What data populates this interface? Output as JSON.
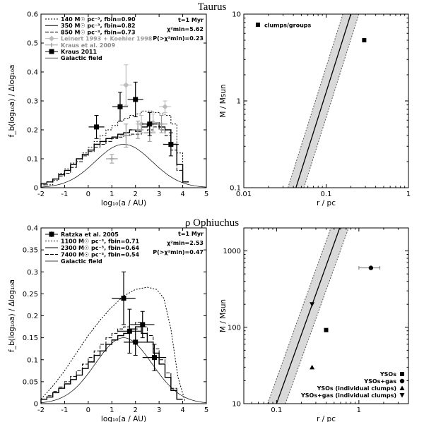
{
  "titles": {
    "top": "Taurus",
    "bottom": "ρ Ophiuchus"
  },
  "chart_data": [
    {
      "id": "taurus_sep",
      "type": "line",
      "xlabel": "log₁₀(a / AU)",
      "ylabel": "f_b(log₁₀a) / Δlog₁₀a",
      "xlim": [
        -2,
        5
      ],
      "ylim": [
        0,
        0.6
      ],
      "xticks": [
        "-2",
        "-1",
        "0",
        "1",
        "2",
        "3",
        "4",
        "5"
      ],
      "yticks": [
        "0",
        "0.1",
        "0.2",
        "0.3",
        "0.4",
        "0.5",
        "0.6"
      ],
      "annotation": [
        "t=1 Myr",
        "χ²min=5.62",
        "P(>χ²min)=0.23"
      ],
      "legend": [
        "140 M☉ pc⁻³, fbin=0.90",
        "350 M☉ pc⁻³, fbin=0.82",
        "850 M☉ pc⁻³, fbin=0.73",
        "Leinert 1993 + Koehler 1998",
        "Kraus et al. 2009",
        "Kraus 2011",
        "Galactic field"
      ],
      "series": [
        {
          "name": "140",
          "style": "dotted",
          "x": [
            -2,
            -1.5,
            -1.25,
            -1,
            -0.75,
            -0.5,
            -0.25,
            0,
            0.25,
            0.5,
            0.75,
            1,
            1.25,
            1.5,
            1.75,
            2,
            2.25,
            2.5,
            2.75,
            3,
            3.25,
            3.5,
            3.75,
            4
          ],
          "y": [
            0.01,
            0.025,
            0.05,
            0.065,
            0.085,
            0.1,
            0.12,
            0.14,
            0.16,
            0.18,
            0.2,
            0.215,
            0.23,
            0.24,
            0.25,
            0.255,
            0.265,
            0.265,
            0.26,
            0.255,
            0.25,
            0.22,
            0.12,
            0.02
          ]
        },
        {
          "name": "350",
          "style": "solid",
          "x": [
            -2,
            -1.75,
            -1.5,
            -1.25,
            -1,
            -0.75,
            -0.5,
            -0.25,
            0,
            0.25,
            0.5,
            0.75,
            1,
            1.25,
            1.5,
            1.75,
            2,
            2.25,
            2.5,
            2.75,
            3,
            3.25,
            3.5,
            3.75,
            4
          ],
          "y": [
            0.015,
            0.02,
            0.03,
            0.045,
            0.06,
            0.08,
            0.1,
            0.115,
            0.13,
            0.15,
            0.16,
            0.17,
            0.175,
            0.185,
            0.19,
            0.2,
            0.195,
            0.21,
            0.22,
            0.225,
            0.21,
            0.2,
            0.15,
            0.08,
            0.02
          ]
        },
        {
          "name": "850",
          "style": "dashed",
          "x": [
            -2,
            -1.75,
            -1.5,
            -1.25,
            -1,
            -0.75,
            -0.5,
            -0.25,
            0,
            0.25,
            0.5,
            0.75,
            1,
            1.25,
            1.5,
            1.75,
            2,
            2.25,
            2.5,
            2.75,
            3,
            3.25,
            3.5,
            3.75,
            4
          ],
          "y": [
            0.01,
            0.02,
            0.03,
            0.04,
            0.05,
            0.07,
            0.09,
            0.11,
            0.125,
            0.14,
            0.15,
            0.16,
            0.17,
            0.175,
            0.18,
            0.185,
            0.185,
            0.19,
            0.2,
            0.21,
            0.2,
            0.18,
            0.13,
            0.06,
            0.02
          ]
        }
      ],
      "field": {
        "mu": 1.5,
        "sigma": 1.2,
        "peak": 0.15
      },
      "kraus2011": [
        {
          "x": 0.35,
          "y": 0.21,
          "yerr": 0.04,
          "xerr": 0.33
        },
        {
          "x": 1.35,
          "y": 0.28,
          "yerr": 0.05,
          "xerr": 0.33
        },
        {
          "x": 2.0,
          "y": 0.305,
          "yerr": 0.06,
          "xerr": 0.33
        },
        {
          "x": 2.6,
          "y": 0.22,
          "yerr": 0.04,
          "xerr": 0.33
        },
        {
          "x": 3.5,
          "y": 0.15,
          "yerr": 0.04,
          "xerr": 0.33
        }
      ],
      "leinert": [
        {
          "x": 1.6,
          "y": 0.355,
          "yerr": 0.07,
          "xerr": 0.25
        },
        {
          "x": 2.25,
          "y": 0.22,
          "yerr": 0.03,
          "xerr": 0.25
        },
        {
          "x": 2.75,
          "y": 0.225,
          "yerr": 0.03,
          "xerr": 0.25
        },
        {
          "x": 3.25,
          "y": 0.28,
          "yerr": 0.02,
          "xerr": 0.25
        }
      ],
      "kraus2009": [
        {
          "x": 1.0,
          "y": 0.1,
          "yerr": 0.015,
          "xerr": 0.25
        },
        {
          "x": 1.6,
          "y": 0.18,
          "yerr": 0.04,
          "xerr": 0.25
        },
        {
          "x": 2.1,
          "y": 0.2,
          "yerr": 0.03,
          "xerr": 0.25
        },
        {
          "x": 2.6,
          "y": 0.19,
          "yerr": 0.03,
          "xerr": 0.25
        },
        {
          "x": 3.1,
          "y": 0.22,
          "yerr": 0.03,
          "xerr": 0.25
        }
      ]
    },
    {
      "id": "taurus_mr",
      "type": "scatter",
      "xlabel": "r / pc",
      "ylabel": "M / Msun",
      "xlim": [
        0.01,
        1
      ],
      "ylim": [
        0.1,
        10
      ],
      "xlog": true,
      "ylog": true,
      "xticks": [
        "0.01",
        "0.1",
        "1"
      ],
      "yticks": [
        "0.1",
        "1",
        "10"
      ],
      "legend": [
        "clumps/groups"
      ],
      "points": [
        {
          "x": 0.29,
          "y": 5.0
        }
      ],
      "band": {
        "line_y01": 0.1,
        "line_x01": 0.043,
        "slope": 3,
        "left_factor": 0.8,
        "right_factor": 1.25
      }
    },
    {
      "id": "oph_sep",
      "type": "line",
      "xlabel": "log₁₀(a / AU)",
      "ylabel": "f_b(log₁₀a) / Δlog₁₀a",
      "xlim": [
        -2,
        5
      ],
      "ylim": [
        0,
        0.4
      ],
      "xticks": [
        "-2",
        "-1",
        "0",
        "1",
        "2",
        "3",
        "4",
        "5"
      ],
      "yticks": [
        "0",
        "0.05",
        "0.1",
        "0.15",
        "0.2",
        "0.25",
        "0.3",
        "0.35",
        "0.4"
      ],
      "annotation": [
        "t=1 Myr",
        "χ²min=2.53",
        "P(>χ²min)=0.47"
      ],
      "legend": [
        "Ratzka et al. 2005",
        "1100 M☉ pc⁻³, fbin=0.71",
        "2300 M☉ pc⁻³, fbin=0.64",
        "7400 M☉ pc⁻³, fbin=0.54",
        "Galactic field"
      ],
      "series": [
        {
          "name": "1100",
          "style": "dotted",
          "x": [
            -2,
            -1.5,
            -1,
            -0.5,
            0,
            0.5,
            1,
            1.5,
            2,
            2.5,
            2.9,
            3.2,
            3.5,
            3.8,
            4.1
          ],
          "y": [
            0.01,
            0.04,
            0.075,
            0.115,
            0.155,
            0.19,
            0.22,
            0.245,
            0.26,
            0.265,
            0.26,
            0.24,
            0.17,
            0.06,
            0.005
          ]
        },
        {
          "name": "2300",
          "style": "solid",
          "x": [
            -2,
            -1.75,
            -1.5,
            -1.25,
            -1,
            -0.75,
            -0.5,
            -0.25,
            0,
            0.25,
            0.5,
            0.75,
            1,
            1.25,
            1.5,
            1.75,
            2,
            2.25,
            2.5,
            2.75,
            3,
            3.25,
            3.5,
            3.75
          ],
          "y": [
            0.01,
            0.015,
            0.025,
            0.035,
            0.045,
            0.055,
            0.065,
            0.08,
            0.095,
            0.11,
            0.12,
            0.135,
            0.145,
            0.155,
            0.16,
            0.17,
            0.175,
            0.16,
            0.14,
            0.115,
            0.09,
            0.06,
            0.03,
            0.01
          ]
        },
        {
          "name": "7400",
          "style": "dashed",
          "x": [
            -2,
            -1.75,
            -1.5,
            -1.25,
            -1,
            -0.75,
            -0.5,
            -0.25,
            0,
            0.25,
            0.5,
            0.75,
            1,
            1.25,
            1.5,
            1.75,
            2,
            2.25,
            2.5,
            2.75,
            3,
            3.25,
            3.5,
            3.75
          ],
          "y": [
            0.01,
            0.018,
            0.028,
            0.038,
            0.05,
            0.062,
            0.075,
            0.09,
            0.105,
            0.12,
            0.135,
            0.15,
            0.16,
            0.17,
            0.175,
            0.18,
            0.185,
            0.175,
            0.155,
            0.125,
            0.1,
            0.07,
            0.035,
            0.01
          ]
        }
      ],
      "field": {
        "mu": 1.5,
        "sigma": 1.2,
        "peak": 0.15
      },
      "ratzka": [
        {
          "x": 1.5,
          "y": 0.24,
          "yerr": 0.06,
          "xerr": 0.5
        },
        {
          "x": 1.75,
          "y": 0.165,
          "yerr": 0.05,
          "xerr": 0.5
        },
        {
          "x": 2.3,
          "y": 0.18,
          "yerr": 0.03,
          "xerr": 0.5
        },
        {
          "x": 2.0,
          "y": 0.14,
          "yerr": 0.03,
          "xerr": 0.5
        },
        {
          "x": 2.8,
          "y": 0.105,
          "yerr": 0.03,
          "xerr": 0.5
        }
      ]
    },
    {
      "id": "oph_mr",
      "type": "scatter",
      "xlabel": "r / pc",
      "ylabel": "M / Msun",
      "xlim": [
        0.04,
        4
      ],
      "ylim": [
        10,
        2000
      ],
      "xlog": true,
      "ylog": true,
      "xticks": [
        "0.1",
        "1"
      ],
      "yticks": [
        "10",
        "100",
        "1000"
      ],
      "legend": [
        "YSOs",
        "YSOs+gas",
        "YSOs (individual clumps)",
        "YSOs+gas (individual clumps)"
      ],
      "points": [
        {
          "marker": "square",
          "x": 0.4,
          "y": 92
        },
        {
          "marker": "circle",
          "x": 1.4,
          "y": 600,
          "xerr": 0.4
        },
        {
          "marker": "triangle",
          "x": 0.27,
          "y": 30
        },
        {
          "marker": "triangle-down",
          "x": 0.27,
          "y": 200
        }
      ],
      "band": {
        "line_y10": 10,
        "line_x10": 0.1,
        "slope": 3,
        "left_factor": 0.78,
        "right_factor": 1.28
      }
    }
  ]
}
